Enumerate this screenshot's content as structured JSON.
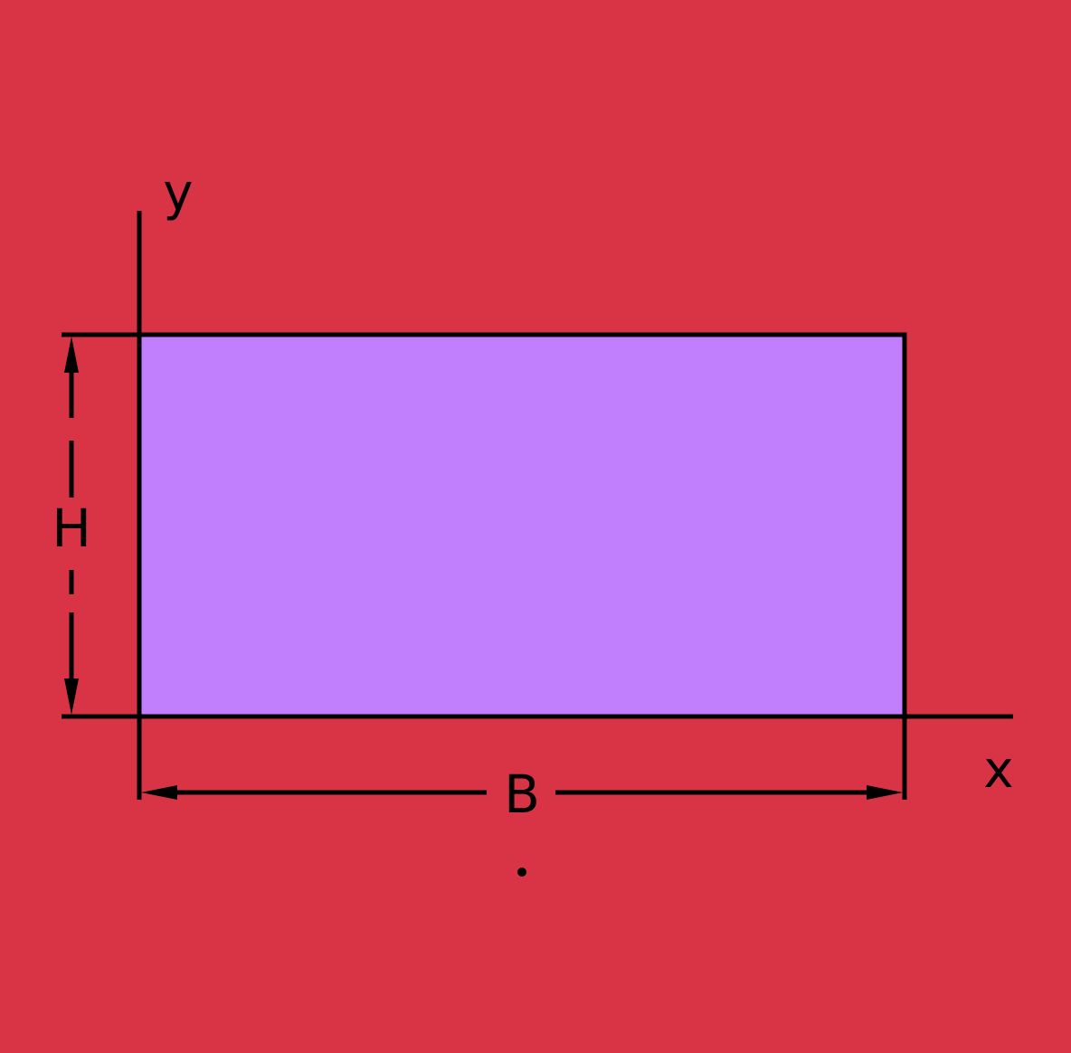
{
  "colors": {
    "background": "#d93446",
    "rectangle_fill": "#c17ffe",
    "stroke": "#000000"
  },
  "labels": {
    "y_axis": "y",
    "x_axis": "x",
    "height": "H",
    "width": "B"
  }
}
